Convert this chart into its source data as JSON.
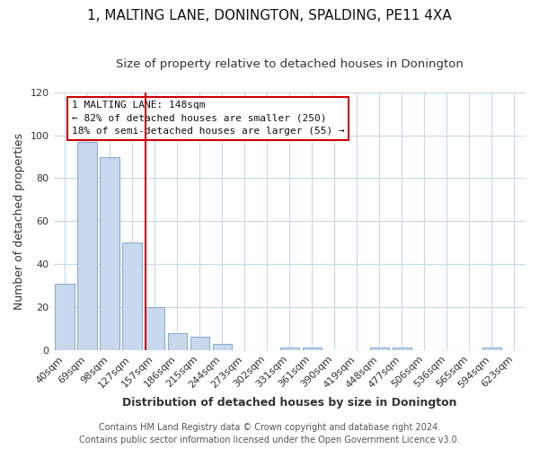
{
  "title": "1, MALTING LANE, DONINGTON, SPALDING, PE11 4XA",
  "subtitle": "Size of property relative to detached houses in Donington",
  "xlabel": "Distribution of detached houses by size in Donington",
  "ylabel": "Number of detached properties",
  "bar_labels": [
    "40sqm",
    "69sqm",
    "98sqm",
    "127sqm",
    "157sqm",
    "186sqm",
    "215sqm",
    "244sqm",
    "273sqm",
    "302sqm",
    "331sqm",
    "361sqm",
    "390sqm",
    "419sqm",
    "448sqm",
    "477sqm",
    "506sqm",
    "536sqm",
    "565sqm",
    "594sqm",
    "623sqm"
  ],
  "bar_values": [
    31,
    97,
    90,
    50,
    20,
    8,
    6,
    3,
    0,
    0,
    1,
    1,
    0,
    0,
    1,
    1,
    0,
    0,
    0,
    1,
    0
  ],
  "bar_color": "#c8d9ee",
  "bar_edge_color": "#8aadd4",
  "red_line_color": "#cc0000",
  "red_line_x": 3.6,
  "ylim": [
    0,
    120
  ],
  "yticks": [
    0,
    20,
    40,
    60,
    80,
    100,
    120
  ],
  "annotation_title": "1 MALTING LANE: 148sqm",
  "annotation_line1": "← 82% of detached houses are smaller (250)",
  "annotation_line2": "18% of semi-detached houses are larger (55) →",
  "annotation_box_color": "#ffffff",
  "annotation_box_edge_color": "#cc0000",
  "footer_line1": "Contains HM Land Registry data © Crown copyright and database right 2024.",
  "footer_line2": "Contains public sector information licensed under the Open Government Licence v3.0.",
  "background_color": "#ffffff",
  "grid_color": "#c8d8e8",
  "title_fontsize": 11,
  "subtitle_fontsize": 9.5,
  "axis_label_fontsize": 9,
  "tick_fontsize": 8,
  "footer_fontsize": 7,
  "annotation_fontsize": 8
}
